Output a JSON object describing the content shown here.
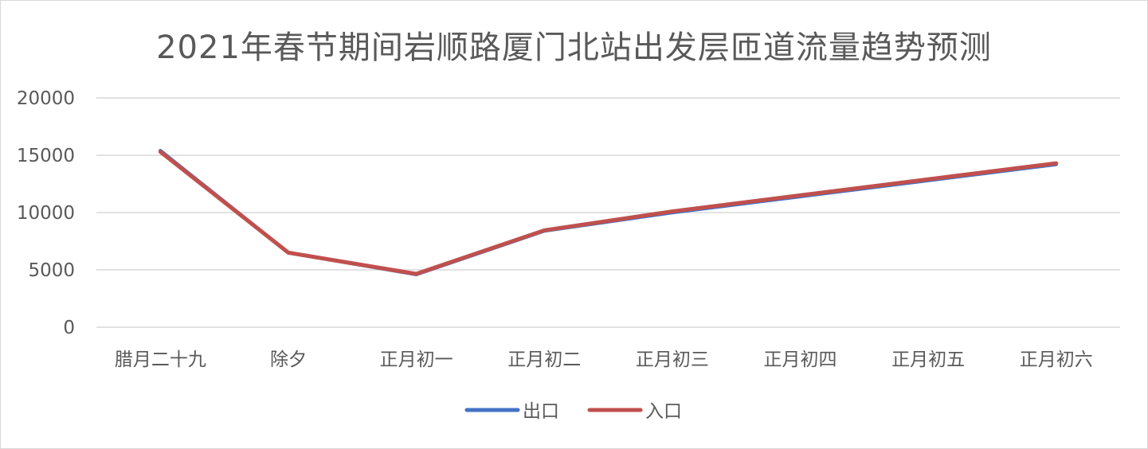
{
  "chart_data": {
    "type": "line",
    "title": "2021年春节期间岩顺路厦门北站出发层匝道流量趋势预测",
    "categories": [
      "腊月二十九",
      "除夕",
      "正月初一",
      "正月初二",
      "正月初三",
      "正月初四",
      "正月初五",
      "正月初六"
    ],
    "series": [
      {
        "name": "出口",
        "color": "#4472C4",
        "values": [
          15400,
          6500,
          4600,
          8400,
          10000,
          11400,
          12800,
          14200
        ]
      },
      {
        "name": "入口",
        "color": "#C0504D",
        "values": [
          15300,
          6500,
          4650,
          8450,
          10100,
          11500,
          12900,
          14300
        ]
      }
    ],
    "ylim": [
      0,
      20000
    ],
    "yticks": [
      "0",
      "5000",
      "10000",
      "15000",
      "20000"
    ],
    "grid": true,
    "legend": "bottom"
  }
}
